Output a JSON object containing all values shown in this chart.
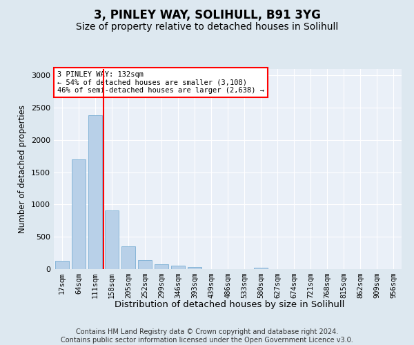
{
  "title": "3, PINLEY WAY, SOLIHULL, B91 3YG",
  "subtitle": "Size of property relative to detached houses in Solihull",
  "xlabel": "Distribution of detached houses by size in Solihull",
  "ylabel": "Number of detached properties",
  "categories": [
    "17sqm",
    "64sqm",
    "111sqm",
    "158sqm",
    "205sqm",
    "252sqm",
    "299sqm",
    "346sqm",
    "393sqm",
    "439sqm",
    "486sqm",
    "533sqm",
    "580sqm",
    "627sqm",
    "674sqm",
    "721sqm",
    "768sqm",
    "815sqm",
    "862sqm",
    "909sqm",
    "956sqm"
  ],
  "values": [
    130,
    1700,
    2380,
    910,
    350,
    140,
    80,
    50,
    35,
    0,
    0,
    0,
    25,
    0,
    0,
    0,
    0,
    0,
    0,
    0,
    0
  ],
  "bar_color": "#b8d0e8",
  "bar_edge_color": "#7aafd4",
  "vline_color": "red",
  "annotation_text": "3 PINLEY WAY: 132sqm\n← 54% of detached houses are smaller (3,108)\n46% of semi-detached houses are larger (2,638) →",
  "annotation_box_color": "white",
  "annotation_box_edge_color": "red",
  "ylim": [
    0,
    3100
  ],
  "yticks": [
    0,
    500,
    1000,
    1500,
    2000,
    2500,
    3000
  ],
  "bg_color": "#dde8f0",
  "axes_bg_color": "#eaf0f8",
  "footer": "Contains HM Land Registry data © Crown copyright and database right 2024.\nContains public sector information licensed under the Open Government Licence v3.0.",
  "title_fontsize": 12,
  "subtitle_fontsize": 10,
  "tick_fontsize": 7.5,
  "ylabel_fontsize": 8.5,
  "xlabel_fontsize": 9.5,
  "footer_fontsize": 7
}
